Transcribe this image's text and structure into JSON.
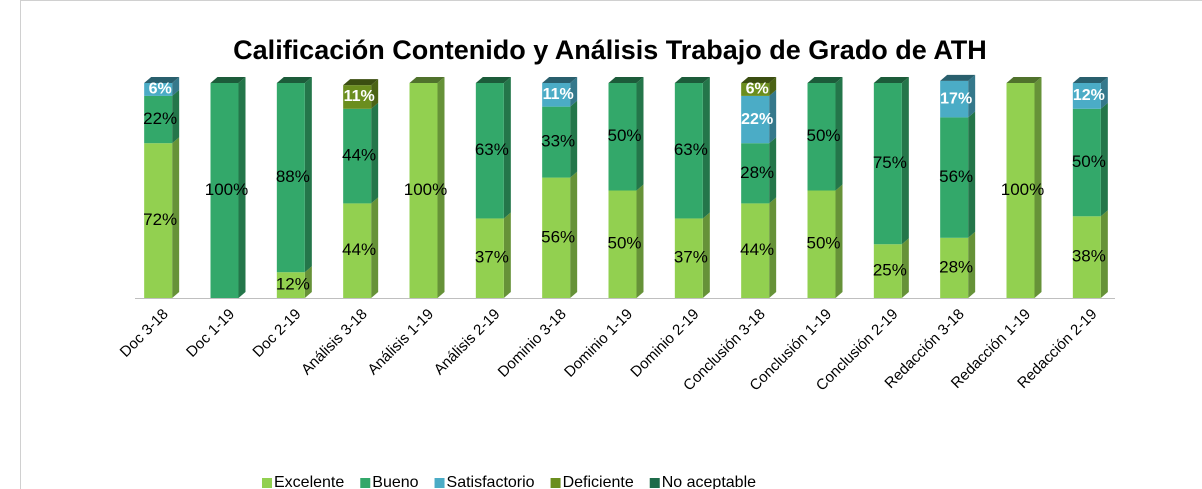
{
  "chart_data": {
    "type": "stacked_bar",
    "title": "Calificación Contenido y Análisis Trabajo de Grado de ATH",
    "categories": [
      "Doc 3-18",
      "Doc 1-19",
      "Doc 2-19",
      "Análisis 3-18",
      "Análisis 1-19",
      "Análisis 2-19",
      "Dominio 3-18",
      "Dominio 1-19",
      "Dominio 2-19",
      "Conclusión 3-18",
      "Conclusión 1-19",
      "Conclusión 2-19",
      "Redacción 3-18",
      "Redacción 1-19",
      "Redacción 2-19"
    ],
    "ylim": [
      0,
      100
    ],
    "legend": "bottom",
    "series": [
      {
        "name": "Excelente",
        "color": "#92d050",
        "values": [
          72,
          0,
          12,
          44,
          100,
          37,
          56,
          50,
          37,
          44,
          50,
          25,
          28,
          100,
          38
        ],
        "value_labels": [
          "72%",
          null,
          "12%",
          "44%",
          "100%",
          "37%",
          "56%",
          "50%",
          "37%",
          "44%",
          "50%",
          "25%",
          "28%",
          "100%",
          "38%"
        ]
      },
      {
        "name": "Bueno",
        "color": "#33a86a",
        "values": [
          22,
          100,
          88,
          44,
          0,
          63,
          33,
          50,
          63,
          28,
          50,
          75,
          56,
          0,
          50
        ],
        "value_labels": [
          "22%",
          "100%",
          "88%",
          "44%",
          null,
          "63%",
          "33%",
          "50%",
          "63%",
          "28%",
          "50%",
          "75%",
          "56%",
          null,
          "50%"
        ]
      },
      {
        "name": "Satisfactorio",
        "color": "#4bacc6",
        "values": [
          6,
          0,
          0,
          0,
          0,
          0,
          11,
          0,
          0,
          22,
          0,
          0,
          17,
          0,
          12
        ],
        "value_labels": [
          "6%",
          null,
          null,
          null,
          null,
          null,
          "11%",
          null,
          null,
          "22%",
          null,
          null,
          "17%",
          null,
          "12%"
        ]
      },
      {
        "name": "Deficiente",
        "color": "#6b8e1e",
        "values": [
          0,
          0,
          0,
          11,
          0,
          0,
          0,
          0,
          0,
          6,
          0,
          0,
          0,
          0,
          0
        ],
        "value_labels": [
          null,
          null,
          null,
          "11%",
          null,
          null,
          null,
          null,
          null,
          "6%",
          null,
          null,
          null,
          null,
          null
        ]
      },
      {
        "name": "No aceptable",
        "color": "#1e6b4a",
        "values": [
          0,
          0,
          0,
          0,
          0,
          0,
          0,
          0,
          0,
          0,
          0,
          0,
          0,
          0,
          0
        ],
        "value_labels": [
          null,
          null,
          null,
          null,
          null,
          null,
          null,
          null,
          null,
          null,
          null,
          null,
          null,
          null,
          null
        ]
      }
    ]
  }
}
